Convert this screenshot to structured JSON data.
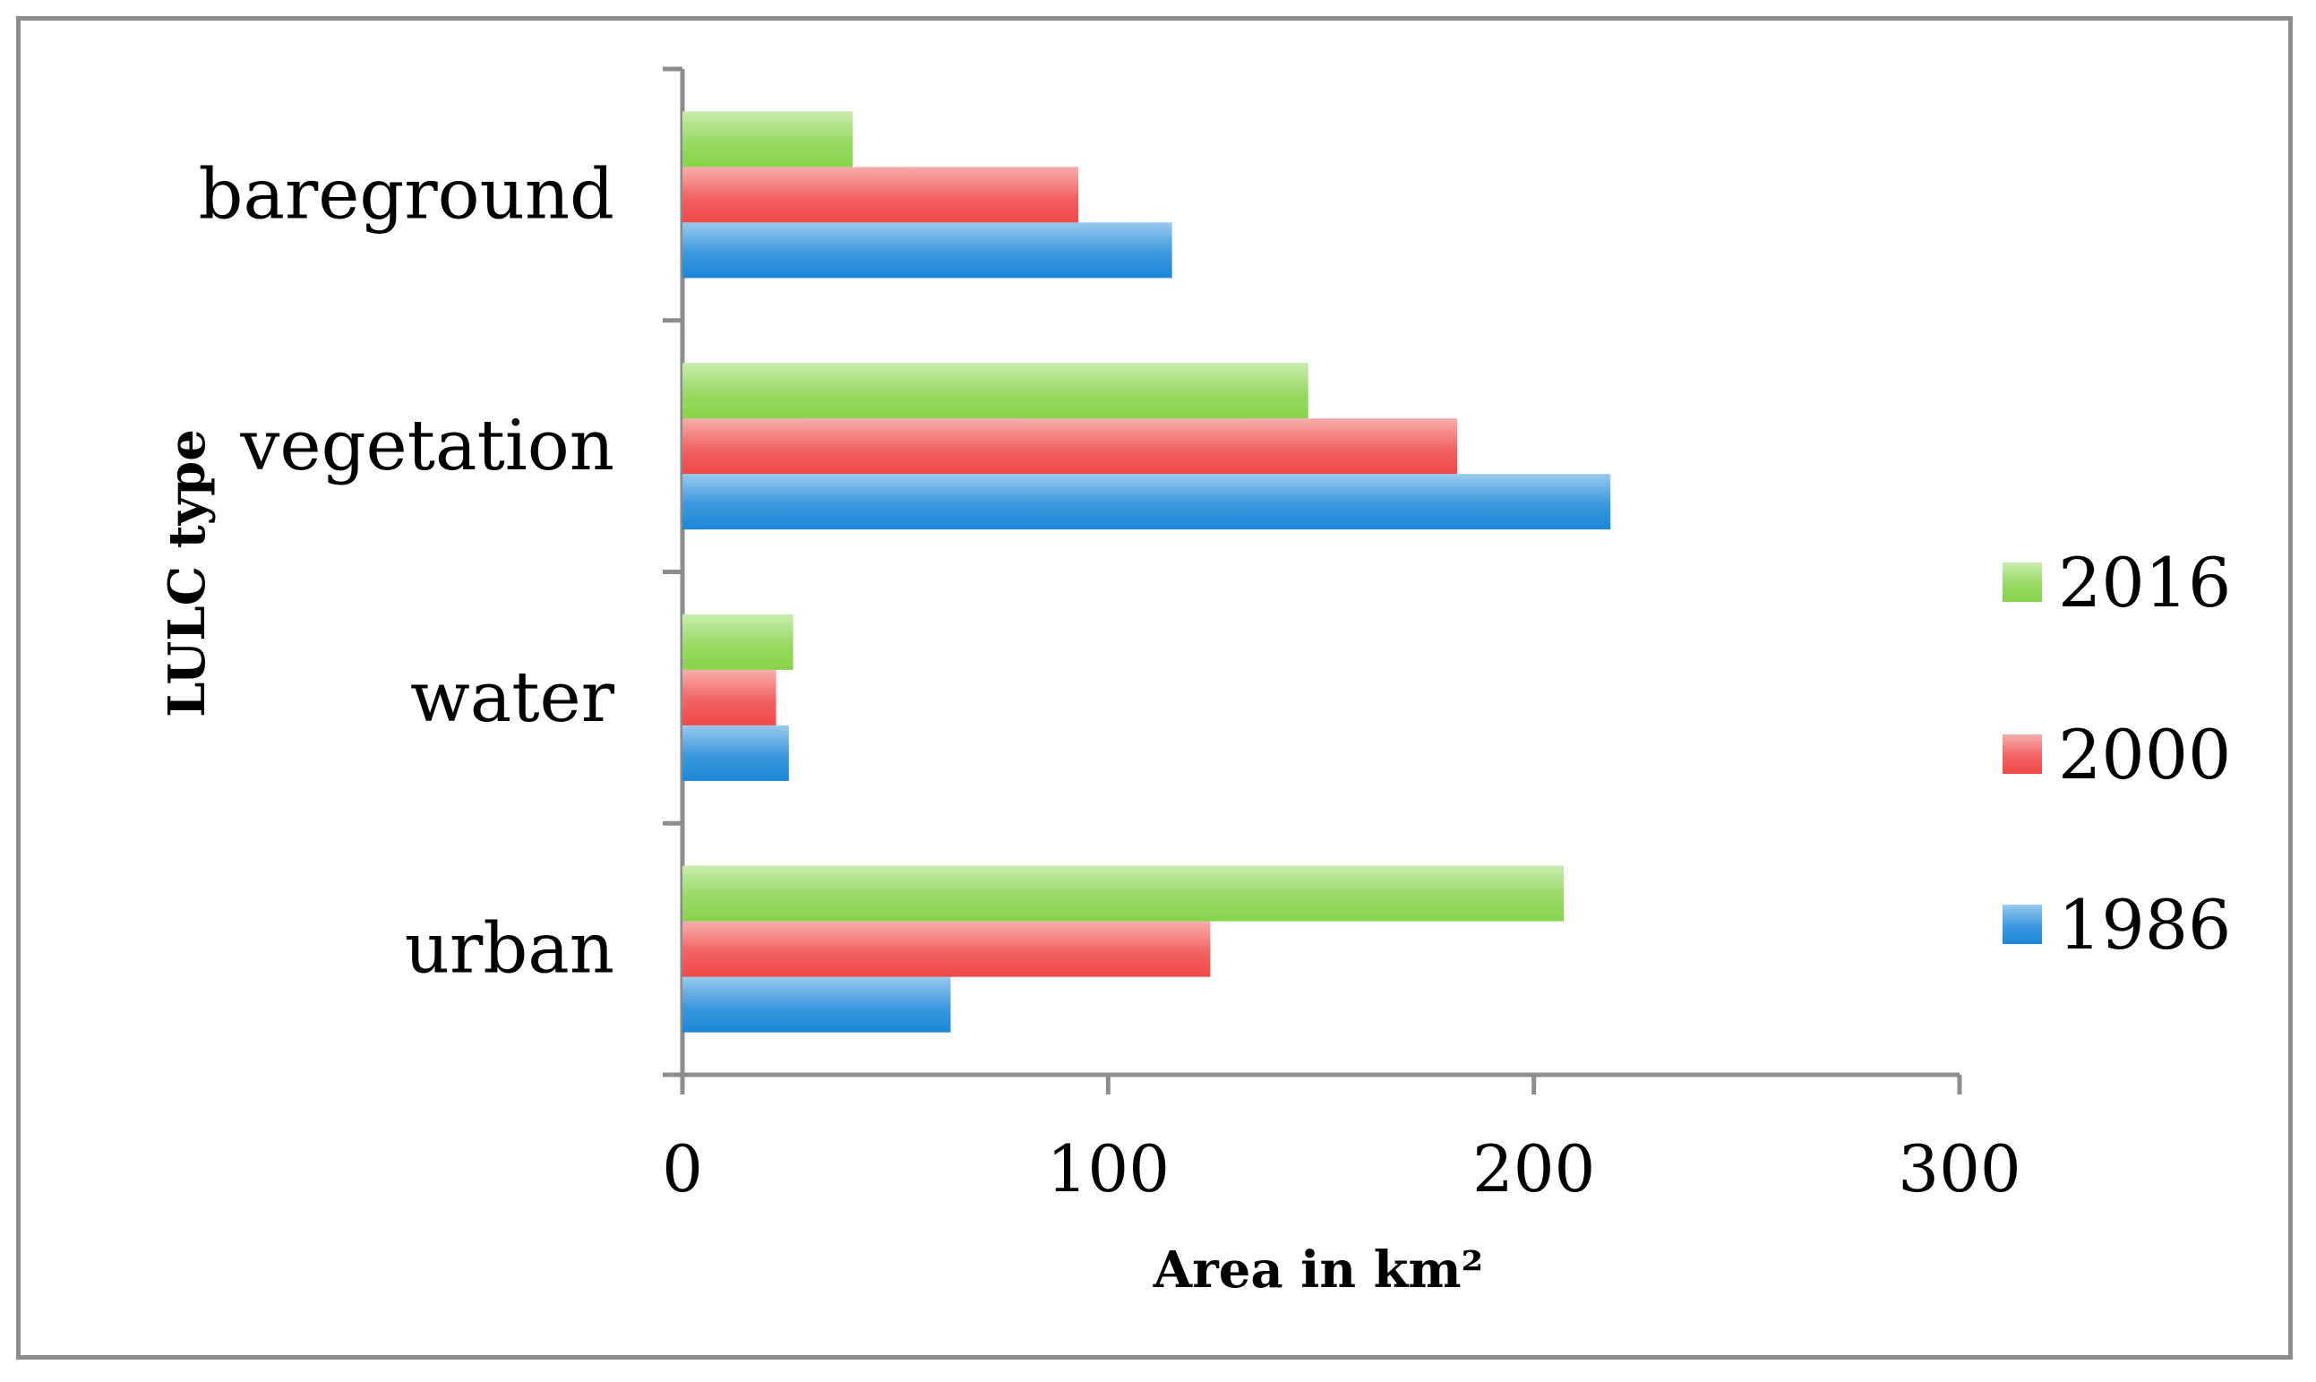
{
  "chart_data": {
    "type": "bar",
    "orientation": "horizontal",
    "categories": [
      "urban",
      "water",
      "vegetation",
      "bareground"
    ],
    "series": [
      {
        "name": "1986",
        "values": [
          63,
          25,
          218,
          115
        ],
        "color": "#1a86d8"
      },
      {
        "name": "2000",
        "values": [
          124,
          22,
          182,
          93
        ],
        "color": "#f04848"
      },
      {
        "name": "2016",
        "values": [
          207,
          26,
          147,
          40
        ],
        "color": "#86d44a"
      }
    ],
    "xlabel": "Area in  km²",
    "ylabel": "LULC type",
    "xlim": [
      0,
      300
    ],
    "xticks": [
      "0",
      "100",
      "200",
      "300"
    ],
    "legend_placement": "right",
    "legend_order": [
      "2016",
      "2000",
      "1986"
    ],
    "grid": false
  }
}
